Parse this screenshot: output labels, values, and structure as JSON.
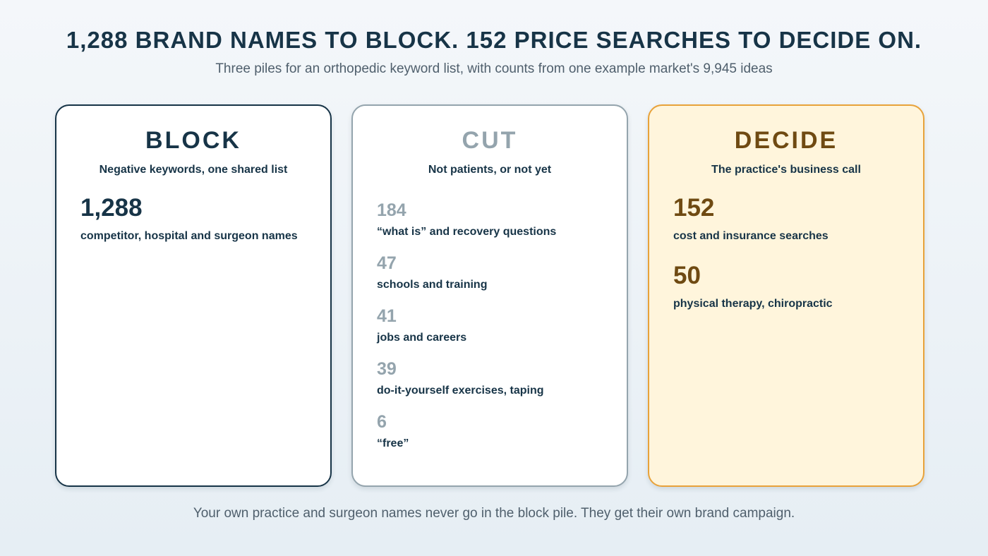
{
  "title": "1,288 BRAND NAMES TO BLOCK. 152 PRICE SEARCHES TO DECIDE ON.",
  "subtitle": "Three piles for an orthopedic keyword list, with counts from one example market's 9,945 ideas",
  "cards": [
    {
      "heading": "BLOCK",
      "subheading": "Negative keywords, one shared list",
      "accent": "#173447",
      "stats": [
        {
          "value": "1,288",
          "label": "competitor, hospital and surgeon names"
        }
      ]
    },
    {
      "heading": "CUT",
      "subheading": "Not patients, or not yet",
      "accent": "#94a4ad",
      "stats": [
        {
          "value": "184",
          "label": "“what is” and recovery questions"
        },
        {
          "value": "47",
          "label": "schools and training"
        },
        {
          "value": "41",
          "label": "jobs and careers"
        },
        {
          "value": "39",
          "label": "do-it-yourself exercises, taping"
        },
        {
          "value": "6",
          "label": "“free”"
        }
      ]
    },
    {
      "heading": "DECIDE",
      "subheading": "The practice's business call",
      "accent": "#e8a23a",
      "stats": [
        {
          "value": "152",
          "label": "cost and insurance searches"
        },
        {
          "value": "50",
          "label": "physical therapy, chiropractic"
        }
      ]
    }
  ],
  "footer": "Your own practice and surgeon names never go in the block pile. They get their own brand campaign."
}
